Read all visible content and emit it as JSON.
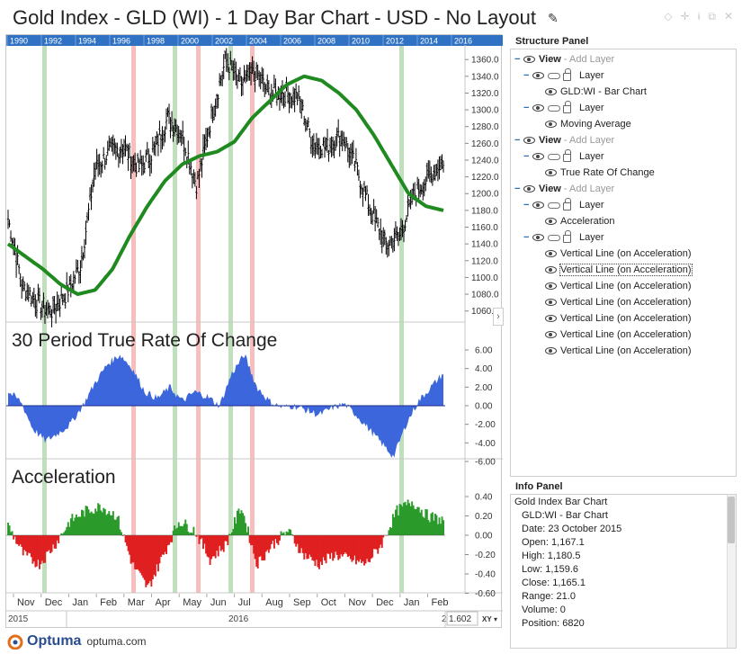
{
  "title": "Gold Index - GLD (WI) - 1 Day Bar Chart - USD - No Layout",
  "colors": {
    "price_bars": "#000000",
    "moving_average": "#1f8a1f",
    "trc_fill": "#3c66dc",
    "accel_positive": "#2a9a2a",
    "accel_negative": "#e02020",
    "vline_green": "#b9dcb6",
    "vline_red": "#f6b7b7",
    "year_strip": "#2f72c4"
  },
  "year_strip": [
    "1990",
    "1992",
    "1994",
    "1996",
    "1998",
    "2000",
    "2002",
    "2004",
    "2006",
    "2008",
    "2010",
    "2012",
    "2014",
    "2016"
  ],
  "price_axis_ticks": [
    "1360.0",
    "1340.0",
    "1320.0",
    "1300.0",
    "1280.0",
    "1260.0",
    "1240.0",
    "1220.0",
    "1200.0",
    "1180.0",
    "1160.0",
    "1140.0",
    "1120.0",
    "1100.0",
    "1080.0",
    "1060.0"
  ],
  "trc_axis_ticks": [
    "6.00",
    "4.00",
    "2.00",
    "0.00",
    "-2.00",
    "-4.00",
    "-6.00"
  ],
  "accel_axis_ticks": [
    "0.40",
    "0.20",
    "0.00",
    "-0.20",
    "-0.40",
    "-0.60"
  ],
  "panes": {
    "trc_title": "30 Period True Rate Of Change",
    "accel_title": "Acceleration"
  },
  "x_axis": {
    "months": [
      "Nov",
      "Dec",
      "Jan",
      "Feb",
      "Mar",
      "Apr",
      "May",
      "Jun",
      "Jul",
      "Aug",
      "Sep",
      "Oct",
      "Nov",
      "Dec",
      "Jan",
      "Feb"
    ],
    "year_left": "2015",
    "year_mid": "2016",
    "year_right": "2"
  },
  "price_readout": "1.602",
  "xy_label": "XY",
  "price_series": {
    "description_units": "USD",
    "daily_close_keypoints": [
      [
        "start",
        1170
      ],
      [
        "Nov-mid",
        1090
      ],
      [
        "Dec-mid",
        1070
      ],
      [
        "Dec-end",
        1060
      ],
      [
        "Jan-early",
        1080
      ],
      [
        "Jan-end",
        1115
      ],
      [
        "Feb-mid",
        1230
      ],
      [
        "Feb-end",
        1250
      ],
      [
        "Mar-mid",
        1255
      ],
      [
        "Mar-end",
        1230
      ],
      [
        "Apr-mid",
        1250
      ],
      [
        "Apr-end",
        1290
      ],
      [
        "May-mid",
        1270
      ],
      [
        "May-end",
        1210
      ],
      [
        "Jun-mid",
        1290
      ],
      [
        "Jul-early",
        1360
      ],
      [
        "Jul-mid",
        1330
      ],
      [
        "Aug-mid",
        1345
      ],
      [
        "Sep-early",
        1320
      ],
      [
        "Sep-mid",
        1320
      ],
      [
        "Sep-end",
        1315
      ],
      [
        "Oct-early",
        1260
      ],
      [
        "Oct-mid",
        1255
      ],
      [
        "Oct-end",
        1270
      ],
      [
        "Nov-early",
        1230
      ],
      [
        "Nov-mid",
        1180
      ],
      [
        "Dec-mid",
        1140
      ],
      [
        "Dec-end",
        1150
      ],
      [
        "Jan-mid",
        1200
      ],
      [
        "Feb-early",
        1220
      ],
      [
        "end",
        1240
      ]
    ],
    "moving_average_keypoints": [
      1140,
      1125,
      1110,
      1092,
      1080,
      1085,
      1110,
      1150,
      1185,
      1215,
      1235,
      1245,
      1250,
      1262,
      1290,
      1310,
      1330,
      1340,
      1335,
      1320,
      1300,
      1270,
      1235,
      1200,
      1185,
      1180
    ]
  },
  "vertical_lines": [
    {
      "month": "Dec",
      "color": "green"
    },
    {
      "month": "Mar",
      "color": "red"
    },
    {
      "month": "Apr",
      "color": "green"
    },
    {
      "month": "May",
      "color": "red"
    },
    {
      "month": "Jun",
      "color": "green"
    },
    {
      "month": "Jul",
      "color": "red"
    },
    {
      "month": "Dec",
      "color": "green"
    }
  ],
  "structure_panel": {
    "title": "Structure Panel",
    "rows": [
      {
        "type": "view",
        "label": "View",
        "add": "- Add Layer"
      },
      {
        "type": "layer",
        "label": "Layer"
      },
      {
        "type": "item",
        "label": "GLD:WI - Bar Chart"
      },
      {
        "type": "layer",
        "label": "Layer"
      },
      {
        "type": "item",
        "label": "Moving Average"
      },
      {
        "type": "view",
        "label": "View",
        "add": "- Add Layer"
      },
      {
        "type": "layer",
        "label": "Layer"
      },
      {
        "type": "item",
        "label": "True Rate Of Change"
      },
      {
        "type": "view",
        "label": "View",
        "add": "- Add Layer"
      },
      {
        "type": "layer",
        "label": "Layer"
      },
      {
        "type": "item",
        "label": "Acceleration"
      },
      {
        "type": "layer",
        "label": "Layer"
      },
      {
        "type": "item",
        "label": "Vertical Line (on Acceleration)"
      },
      {
        "type": "item",
        "label": "Vertical Line (on Acceleration)",
        "selected": true
      },
      {
        "type": "item",
        "label": "Vertical Line (on Acceleration)"
      },
      {
        "type": "item",
        "label": "Vertical Line (on Acceleration)"
      },
      {
        "type": "item",
        "label": "Vertical Line (on Acceleration)"
      },
      {
        "type": "item",
        "label": "Vertical Line (on Acceleration)"
      },
      {
        "type": "item",
        "label": "Vertical Line (on Acceleration)"
      }
    ]
  },
  "info_panel": {
    "title": "Info Panel",
    "lines": [
      "Gold Index Bar Chart",
      "GLD:WI - Bar Chart",
      "Date: 23 October 2015",
      "Open: 1,167.1",
      "High: 1,180.5",
      "Low: 1,159.6",
      "Close: 1,165.1",
      "Range: 21.0",
      "Volume: 0",
      "Position: 6820"
    ]
  },
  "footer": {
    "brand": "Optuma",
    "url": "optuma.com"
  }
}
